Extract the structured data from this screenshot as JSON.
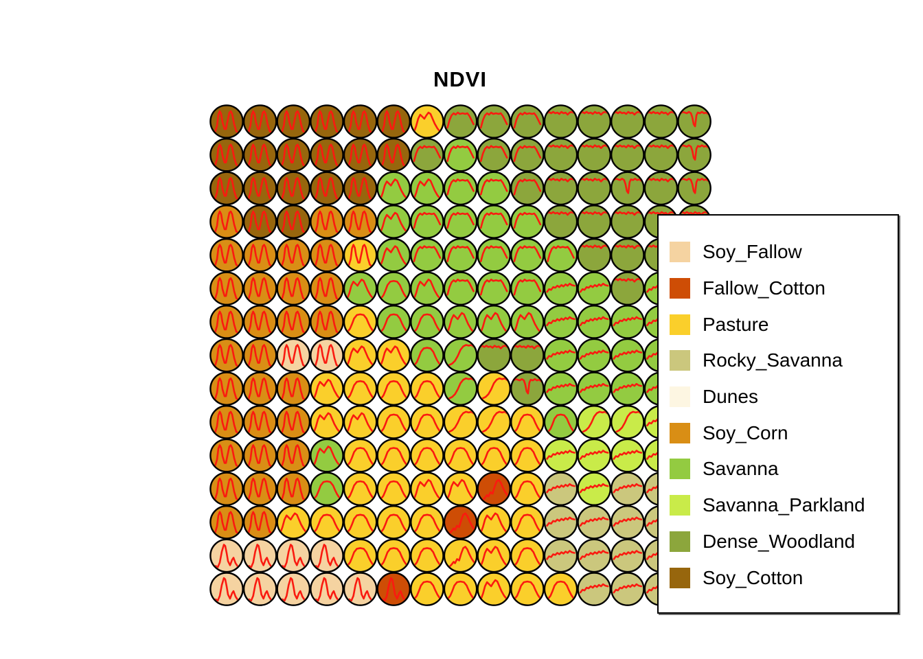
{
  "title": "NDVI",
  "chart_data": {
    "type": "heatmap",
    "subtype": "som-neuron-grid-with-time-series",
    "title": "NDVI",
    "grid_size": {
      "cols": 15,
      "rows": 15
    },
    "note_hidden_cells": "cells rendered null are hidden behind the legend box",
    "series_line_color": "#FA1A10",
    "circle_border_color": "#000000",
    "classes": {
      "SF": {
        "label": "Soy_Fallow",
        "color": "#F5D3A1"
      },
      "FC": {
        "label": "Fallow_Cotton",
        "color": "#CE4D05"
      },
      "PA": {
        "label": "Pasture",
        "color": "#FACF2B"
      },
      "RS": {
        "label": "Rocky_Savanna",
        "color": "#CBC77D"
      },
      "DU": {
        "label": "Dunes",
        "color": "#FDF6E2"
      },
      "CO": {
        "label": "Soy_Corn",
        "color": "#D98E15"
      },
      "SV": {
        "label": "Savanna",
        "color": "#93CB41"
      },
      "SP": {
        "label": "Savanna_Parkland",
        "color": "#C9EB49"
      },
      "DW": {
        "label": "Dense_Woodland",
        "color": "#8CA63C"
      },
      "SC": {
        "label": "Soy_Cotton",
        "color": "#97660D"
      }
    },
    "legend_order": [
      "SF",
      "FC",
      "PA",
      "RS",
      "DU",
      "CO",
      "SV",
      "SP",
      "DW",
      "SC"
    ],
    "cells": [
      [
        "SC:m",
        "SC:m",
        "SC:m",
        "SC:m",
        "SC:m",
        "SC:m",
        "PA:hump2",
        "DW:plateau",
        "DW:plateau",
        "DW:plateau",
        "DW:dips",
        "DW:dips",
        "DW:dips",
        "DW:dips",
        "DW:dipsdeep"
      ],
      [
        "SC:m",
        "SC:m",
        "SC:m",
        "SC:m",
        "SC:m",
        "SC:m",
        "DW:plateau",
        "SV:plateau",
        "DW:plateau",
        "DW:plateau",
        "DW:dips",
        "DW:dips",
        "DW:dips",
        "DW:dips",
        "DW:dipsdeep"
      ],
      [
        "SC:m",
        "SC:m",
        "SC:m",
        "SC:m",
        "SC:m",
        "SV:hump2",
        "SV:hump2",
        "SV:plateau",
        "SV:plateau",
        "DW:plateau",
        "DW:dips",
        "DW:dips",
        "DW:dipsdeep",
        "DW:dips",
        "DW:dipsdeep"
      ],
      [
        "CO:m",
        "SC:m",
        "SC:m",
        "CO:m",
        "CO:m",
        "SV:hump2",
        "SV:plateau",
        "SV:plateau",
        "SV:plateau",
        "SV:plateau",
        "DW:dips",
        "DW:dips",
        "DW:dips",
        "DW:dips",
        "DW:dips"
      ],
      [
        "CO:m",
        "CO:m",
        "CO:m",
        "CO:m",
        "PA:m",
        "SV:hump2",
        "SV:plateau",
        "SV:plateau",
        "SV:plateau",
        "SV:plateau",
        "SV:plateau",
        "DW:dips",
        "DW:dips",
        "DW:dips",
        null
      ],
      [
        "CO:m",
        "CO:m",
        "CO:m",
        "CO:m",
        "SV:hump2",
        "SV:hump",
        "SV:hump2",
        "SV:plateau",
        "SV:plateau",
        "SV:plateau",
        "SV:jag",
        "SV:jag",
        "DW:dips",
        "SV:jag",
        null
      ],
      [
        "CO:m",
        "CO:m",
        "CO:m",
        "CO:m",
        "PA:hump",
        "SV:hump",
        "SV:hump",
        "SV:hump2",
        "SV:hump2",
        "SV:hump2",
        "SV:jag",
        "SV:jag",
        "SV:jag",
        "SV:jag",
        null
      ],
      [
        "CO:m",
        "CO:m",
        "SF:m",
        "SF:m",
        "PA:hump2",
        "PA:hump2",
        "SV:hump",
        "SV:rise",
        "DW:dips",
        "DW:dips",
        "SV:jag",
        "SV:jag",
        "SV:jag",
        "SV:jag",
        null
      ],
      [
        "CO:m",
        "CO:m",
        "CO:m",
        "PA:hump2",
        "PA:hump",
        "PA:hump",
        "PA:hump",
        "SV:rise",
        "PA:rise",
        "DW:dipsdeep",
        "SV:jag",
        "SV:jag",
        "SV:jag",
        "SV:jag",
        null
      ],
      [
        "CO:m",
        "CO:m",
        "CO:m",
        "PA:hump2",
        "PA:hump2",
        "PA:hump",
        "PA:hump",
        "PA:rise",
        "PA:rise",
        "PA:hump",
        "SV:hump",
        "SP:rise",
        "SP:rise",
        "SP:jag",
        null
      ],
      [
        "CO:m",
        "CO:m",
        "CO:m",
        "SV:hump2",
        "PA:hump",
        "PA:hump",
        "PA:hump",
        "PA:hump",
        "PA:hump",
        "PA:hump",
        "SP:jag",
        "SP:jag",
        "SP:jag",
        "SP:jag",
        null
      ],
      [
        "CO:m",
        "CO:m",
        "CO:m",
        "SV:hump",
        "PA:hump",
        "PA:hump",
        "PA:hump2",
        "PA:hump2",
        "FC:risehump",
        "PA:hump",
        "RS:jag",
        "SP:jag",
        "RS:jag",
        "RS:jag",
        null
      ],
      [
        "CO:m",
        "CO:m",
        "PA:hump2",
        "PA:hump",
        "PA:hump",
        "PA:hump",
        "PA:hump",
        "FC:risehump",
        "PA:hump2",
        "PA:hump",
        "RS:jag",
        "RS:jag",
        "RS:jag",
        "RS:jag",
        null
      ],
      [
        "SF:peak",
        "SF:peak",
        "SF:peak",
        "SF:peak",
        "PA:hump",
        "PA:hump",
        "PA:hump",
        "PA:risehump",
        "PA:hump2",
        "PA:hump",
        "RS:jag",
        "RS:jag",
        "RS:jag",
        "RS:jag",
        null
      ],
      [
        "SF:peak",
        "SF:peak",
        "SF:peak",
        "SF:peak",
        "SF:peak",
        "FC:peak",
        "PA:hump",
        "PA:hump",
        "PA:hump2",
        "PA:hump",
        "PA:hump",
        "RS:jag",
        "RS:jag",
        "RS:jag",
        null
      ]
    ]
  },
  "legend": {
    "items": [
      {
        "label": "Soy_Fallow"
      },
      {
        "label": "Fallow_Cotton"
      },
      {
        "label": "Pasture"
      },
      {
        "label": "Rocky_Savanna"
      },
      {
        "label": "Dunes"
      },
      {
        "label": "Soy_Corn"
      },
      {
        "label": "Savanna"
      },
      {
        "label": "Savanna_Parkland"
      },
      {
        "label": "Dense_Woodland"
      },
      {
        "label": "Soy_Cotton"
      }
    ]
  }
}
